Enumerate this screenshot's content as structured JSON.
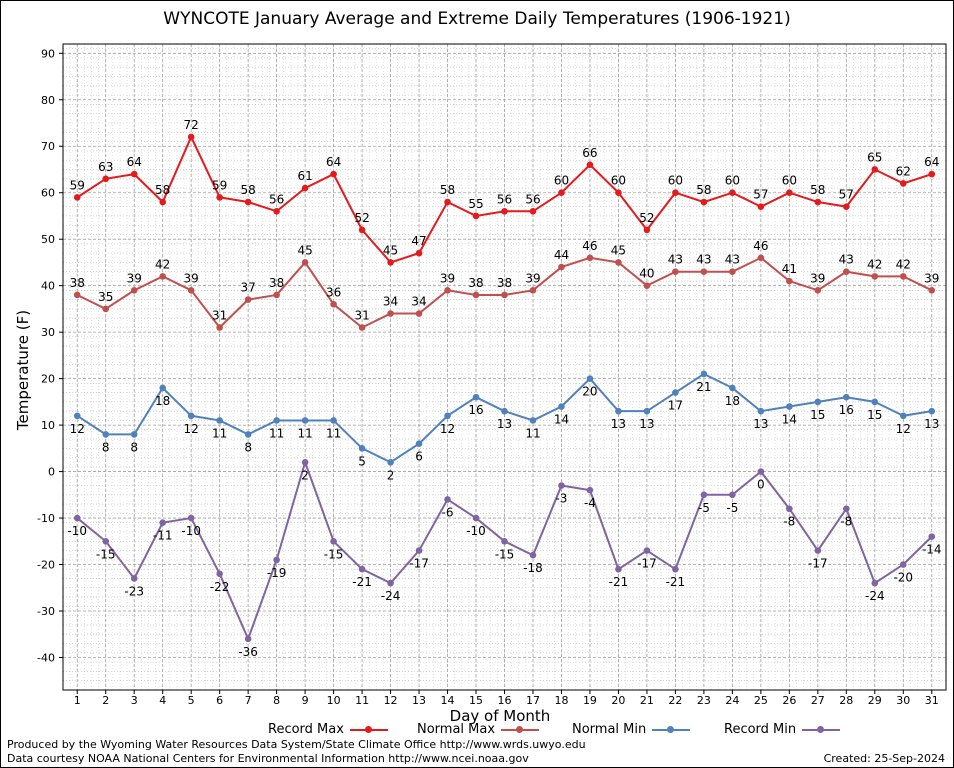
{
  "title": "WYNCOTE January Average and Extreme Daily Temperatures (1906-1921)",
  "credits": {
    "line1": "Produced by the Wyoming Water Resources Data System/State Climate Office http://www.wrds.uwyo.edu",
    "line2": "Data courtesy NOAA National Centers for Environmental Information http://www.ncei.noaa.gov",
    "created": "Created:  25-Sep-2024"
  },
  "legend": [
    {
      "label": "Record Max",
      "color": "#e41a1c"
    },
    {
      "label": "Normal Max",
      "color": "#c0504d"
    },
    {
      "label": "Normal Min",
      "color": "#4f81bd"
    },
    {
      "label": "Record Min",
      "color": "#8064a2"
    }
  ],
  "chart_data": {
    "type": "line",
    "title": "WYNCOTE January Average and Extreme Daily Temperatures (1906-1921)",
    "xlabel": "Day of Month",
    "ylabel": "Temperature (F)",
    "x": [
      1,
      2,
      3,
      4,
      5,
      6,
      7,
      8,
      9,
      10,
      11,
      12,
      13,
      14,
      15,
      16,
      17,
      18,
      19,
      20,
      21,
      22,
      23,
      24,
      25,
      26,
      27,
      28,
      29,
      30,
      31
    ],
    "xlim": [
      0.5,
      31.5
    ],
    "ylim": [
      -47,
      92
    ],
    "yticks": [
      -40,
      -30,
      -20,
      -10,
      0,
      10,
      20,
      30,
      40,
      50,
      60,
      70,
      80,
      90
    ],
    "grid": true,
    "legend_position": "bottom",
    "series": [
      {
        "name": "Record Max",
        "color": "#e41a1c",
        "label_pos": "above",
        "values": [
          59,
          63,
          64,
          58,
          72,
          59,
          58,
          56,
          61,
          64,
          52,
          45,
          47,
          58,
          55,
          56,
          56,
          60,
          66,
          60,
          52,
          60,
          58,
          60,
          57,
          60,
          58,
          57,
          65,
          62,
          64
        ]
      },
      {
        "name": "Normal Max",
        "color": "#c0504d",
        "label_pos": "above",
        "values": [
          38,
          35,
          39,
          42,
          39,
          31,
          37,
          38,
          45,
          36,
          31,
          34,
          34,
          39,
          38,
          38,
          39,
          44,
          46,
          45,
          40,
          43,
          43,
          43,
          46,
          41,
          39,
          43,
          42,
          42,
          39
        ]
      },
      {
        "name": "Normal Min",
        "color": "#4f81bd",
        "label_pos": "below",
        "values": [
          12,
          8,
          8,
          18,
          12,
          11,
          8,
          11,
          11,
          11,
          5,
          2,
          6,
          12,
          16,
          13,
          11,
          14,
          20,
          13,
          13,
          17,
          21,
          18,
          13,
          14,
          15,
          16,
          15,
          12,
          13
        ]
      },
      {
        "name": "Record Min",
        "color": "#8064a2",
        "label_pos": "below",
        "values": [
          -10,
          -15,
          -23,
          -11,
          -10,
          -22,
          -36,
          -19,
          2,
          -15,
          -21,
          -24,
          -17,
          -6,
          -10,
          -15,
          -18,
          -3,
          -4,
          -21,
          -17,
          -21,
          -5,
          -5,
          0,
          -8,
          -17,
          -8,
          -24,
          -20,
          -14
        ]
      }
    ]
  }
}
